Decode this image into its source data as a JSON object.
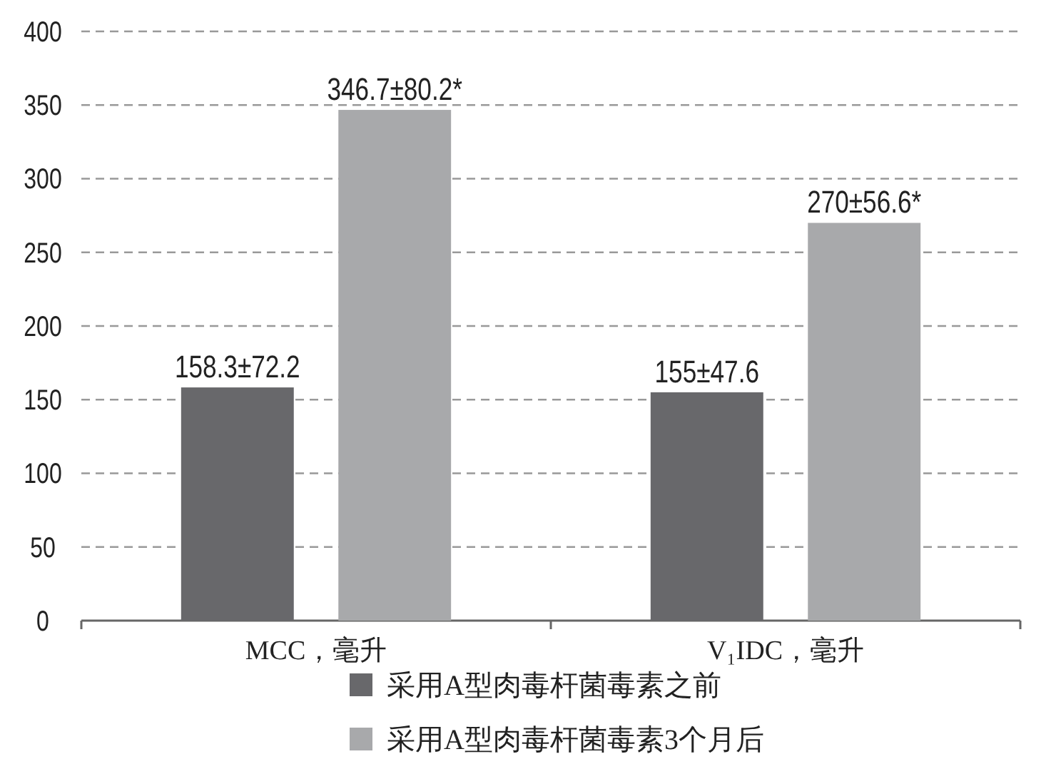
{
  "chart_data": {
    "type": "bar",
    "categories": [
      "MCC，毫升",
      "V₁IDC，毫升"
    ],
    "series": [
      {
        "name": "采用A型肉毒杆菌毒素之前",
        "color": "#68686b",
        "values": [
          158.3,
          155
        ],
        "value_labels": [
          "158.3±72.2",
          "155±47.6"
        ]
      },
      {
        "name": "采用A型肉毒杆菌毒素3个月后",
        "color": "#a8a9ab",
        "values": [
          346.7,
          270
        ],
        "value_labels": [
          "346.7±80.2*",
          "270±56.6*"
        ]
      }
    ],
    "ylim": [
      0,
      400
    ],
    "yticks": [
      0,
      50,
      100,
      150,
      200,
      250,
      300,
      350,
      400
    ],
    "grid": "y",
    "legend": "bottom"
  }
}
